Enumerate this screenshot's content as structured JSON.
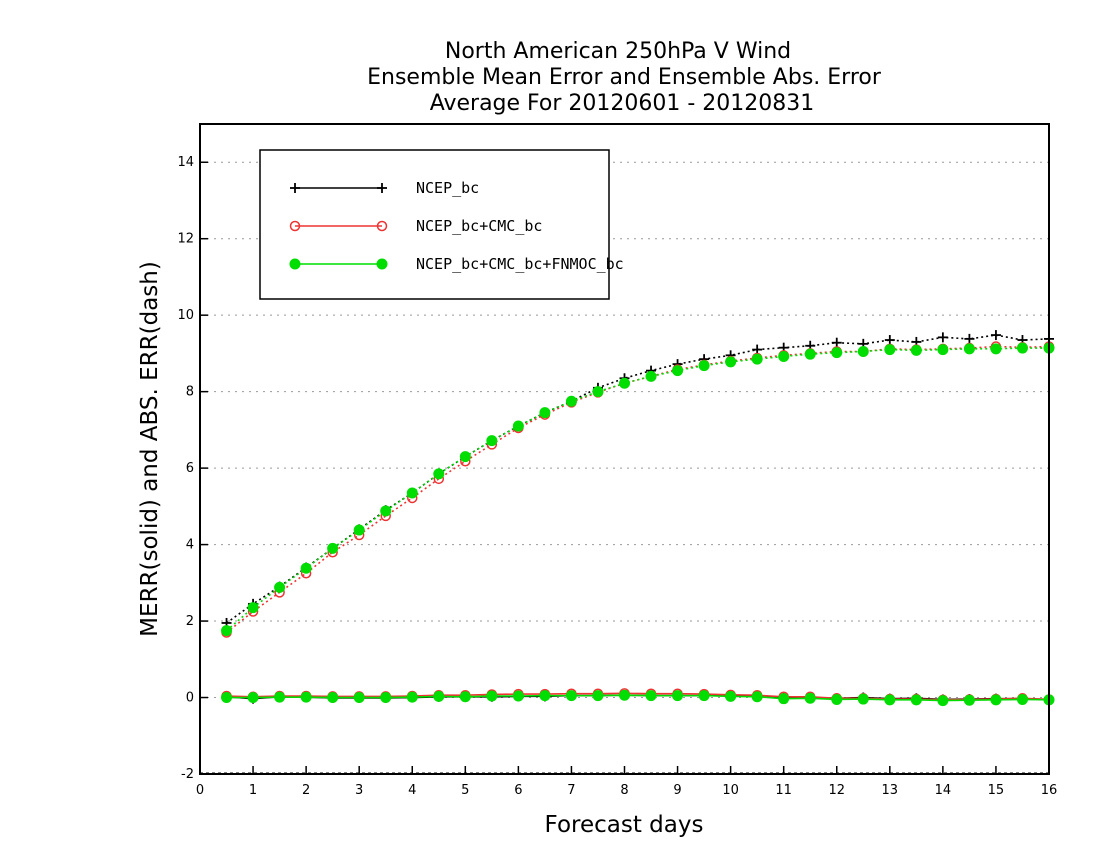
{
  "chart_data": {
    "type": "line",
    "title_lines": [
      "North American 250hPa V Wind",
      "Ensemble Mean Error and Ensemble Abs. Error",
      "Average For 20120601 - 20120831"
    ],
    "xlabel": "Forecast days",
    "ylabel": "MERR(solid) and ABS. ERR(dash)",
    "xlim": [
      0,
      16
    ],
    "ylim": [
      -2,
      15
    ],
    "xticks": [
      0,
      1,
      2,
      3,
      4,
      5,
      6,
      7,
      8,
      9,
      10,
      11,
      12,
      13,
      14,
      15,
      16
    ],
    "yticks": [
      -2,
      0,
      2,
      4,
      6,
      8,
      10,
      12,
      14
    ],
    "grid": "horizontal-dotted",
    "legend_placement": "top-left",
    "x": [
      0.5,
      1,
      1.5,
      2,
      2.5,
      3,
      3.5,
      4,
      4.5,
      5,
      5.5,
      6,
      6.5,
      7,
      7.5,
      8,
      8.5,
      9,
      9.5,
      10,
      10.5,
      11,
      11.5,
      12,
      12.5,
      13,
      13.5,
      14,
      14.5,
      15,
      15.5,
      16
    ],
    "series": [
      {
        "name": "NCEP_bc",
        "color": "#000000",
        "marker": "plus",
        "abs_err": [
          1.95,
          2.45,
          2.9,
          3.4,
          3.9,
          4.4,
          4.9,
          5.35,
          5.85,
          6.3,
          6.72,
          7.1,
          7.45,
          7.75,
          8.1,
          8.35,
          8.55,
          8.72,
          8.85,
          8.95,
          9.1,
          9.15,
          9.2,
          9.28,
          9.25,
          9.35,
          9.3,
          9.42,
          9.38,
          9.48,
          9.35,
          9.38
        ],
        "mean_err": [
          0.02,
          -0.03,
          0.02,
          0.01,
          -0.01,
          -0.01,
          -0.01,
          0.0,
          0.02,
          0.02,
          0.02,
          0.03,
          0.03,
          0.05,
          0.05,
          0.06,
          0.05,
          0.05,
          0.05,
          0.04,
          0.04,
          0.0,
          0.0,
          -0.02,
          0.0,
          -0.03,
          -0.02,
          -0.05,
          -0.04,
          -0.03,
          -0.03,
          -0.05
        ]
      },
      {
        "name": "NCEP_bc+CMC_bc",
        "color": "#ee3333",
        "marker": "open-circle",
        "abs_err": [
          1.7,
          2.25,
          2.75,
          3.25,
          3.8,
          4.25,
          4.75,
          5.22,
          5.72,
          6.18,
          6.62,
          7.05,
          7.4,
          7.72,
          7.98,
          8.22,
          8.4,
          8.58,
          8.7,
          8.8,
          8.88,
          8.95,
          9.0,
          9.05,
          9.05,
          9.12,
          9.1,
          9.12,
          9.14,
          9.18,
          9.16,
          9.18
        ],
        "mean_err": [
          0.04,
          0.02,
          0.04,
          0.04,
          0.03,
          0.03,
          0.03,
          0.04,
          0.06,
          0.06,
          0.08,
          0.09,
          0.09,
          0.1,
          0.1,
          0.11,
          0.1,
          0.1,
          0.09,
          0.07,
          0.06,
          0.02,
          0.02,
          -0.02,
          -0.02,
          -0.04,
          -0.04,
          -0.06,
          -0.05,
          -0.04,
          -0.02,
          -0.05
        ]
      },
      {
        "name": "NCEP_bc+CMC_bc+FNMOC_bc",
        "color": "#00dd00",
        "marker": "filled-circle",
        "abs_err": [
          1.75,
          2.35,
          2.88,
          3.38,
          3.9,
          4.38,
          4.88,
          5.35,
          5.85,
          6.3,
          6.72,
          7.1,
          7.45,
          7.75,
          8.0,
          8.22,
          8.4,
          8.55,
          8.68,
          8.78,
          8.85,
          8.92,
          8.98,
          9.02,
          9.05,
          9.1,
          9.08,
          9.1,
          9.12,
          9.12,
          9.14,
          9.14
        ],
        "mean_err": [
          0.0,
          0.0,
          0.01,
          0.01,
          0.0,
          0.0,
          0.0,
          0.01,
          0.03,
          0.02,
          0.04,
          0.04,
          0.05,
          0.05,
          0.05,
          0.06,
          0.05,
          0.05,
          0.05,
          0.03,
          0.02,
          -0.03,
          -0.02,
          -0.05,
          -0.04,
          -0.06,
          -0.06,
          -0.08,
          -0.07,
          -0.06,
          -0.05,
          -0.06
        ]
      }
    ]
  }
}
